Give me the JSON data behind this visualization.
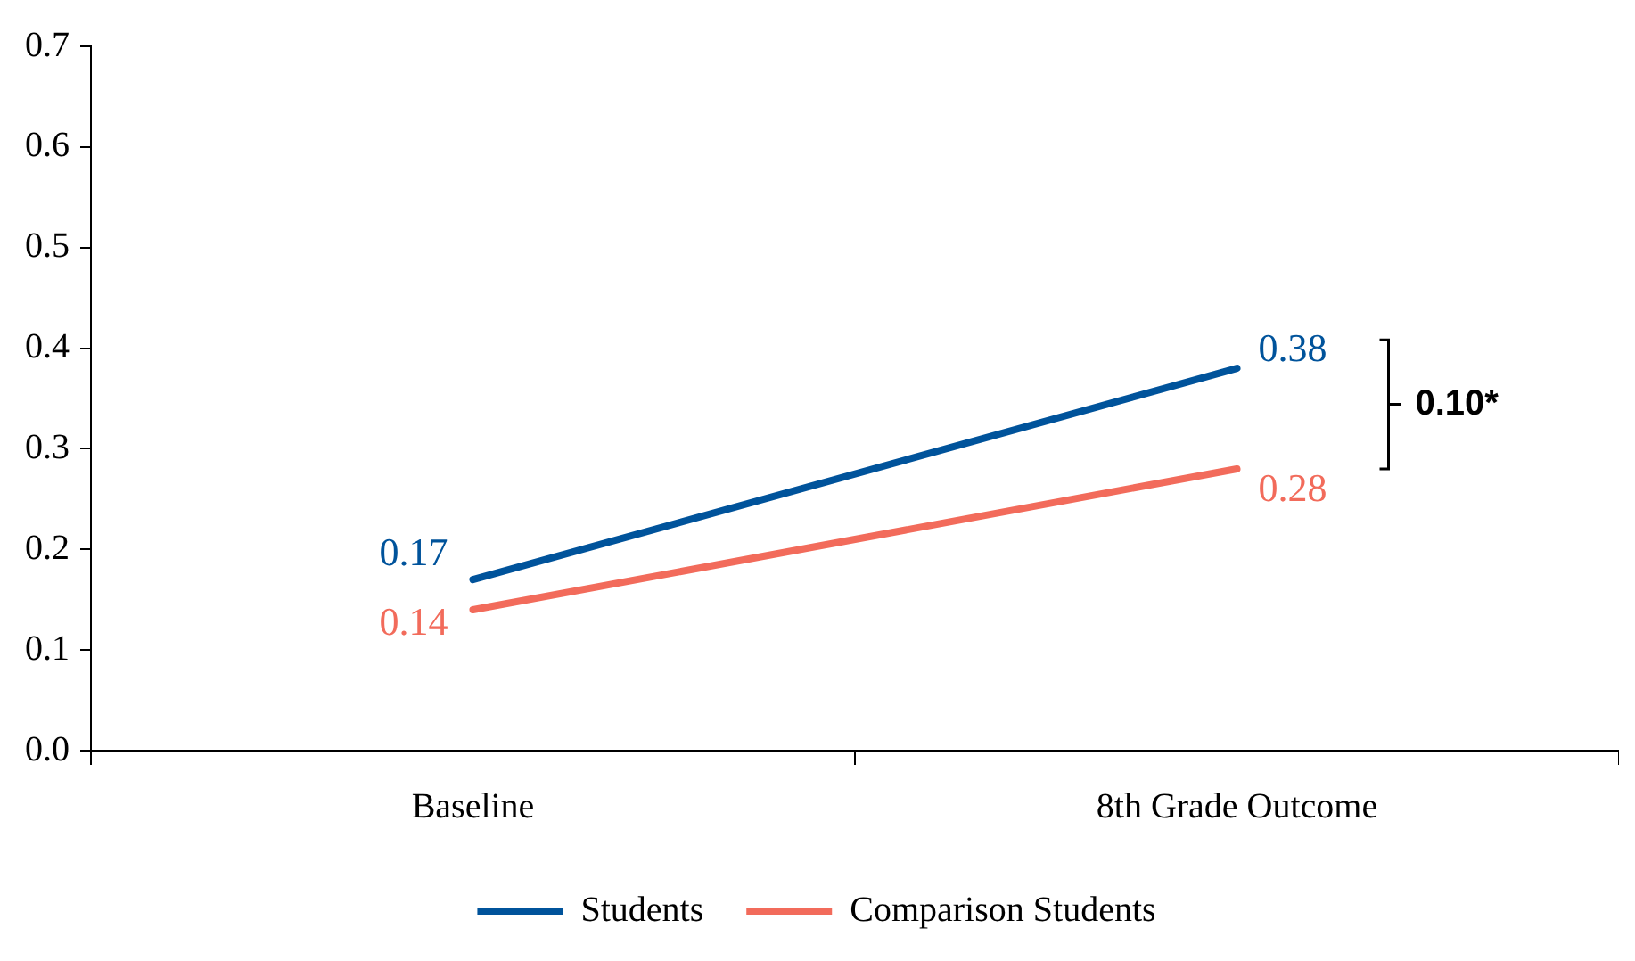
{
  "chart_data": {
    "type": "line",
    "categories": [
      "Baseline",
      "8th Grade Outcome"
    ],
    "series": [
      {
        "name": "Students",
        "color": "#00539b",
        "values": [
          0.17,
          0.38
        ]
      },
      {
        "name": "Comparison Students",
        "color": "#f26b5b",
        "values": [
          0.14,
          0.28
        ]
      }
    ],
    "ylim": [
      0,
      0.7
    ],
    "yticks": [
      {
        "value": 0,
        "label": "0.0"
      },
      {
        "value": 0.1,
        "label": "0.1"
      },
      {
        "value": 0.2,
        "label": "0.2"
      },
      {
        "value": 0.3,
        "label": "0.3"
      },
      {
        "value": 0.4,
        "label": "0.4"
      },
      {
        "value": 0.5,
        "label": "0.5"
      },
      {
        "value": 0.6,
        "label": "0.6"
      },
      {
        "value": 0.7,
        "label": "0.7"
      }
    ],
    "data_labels": true,
    "grid": false,
    "legend": "bottom",
    "marker": "none",
    "line_style": "solid",
    "annotations": [
      "0.10*"
    ]
  }
}
